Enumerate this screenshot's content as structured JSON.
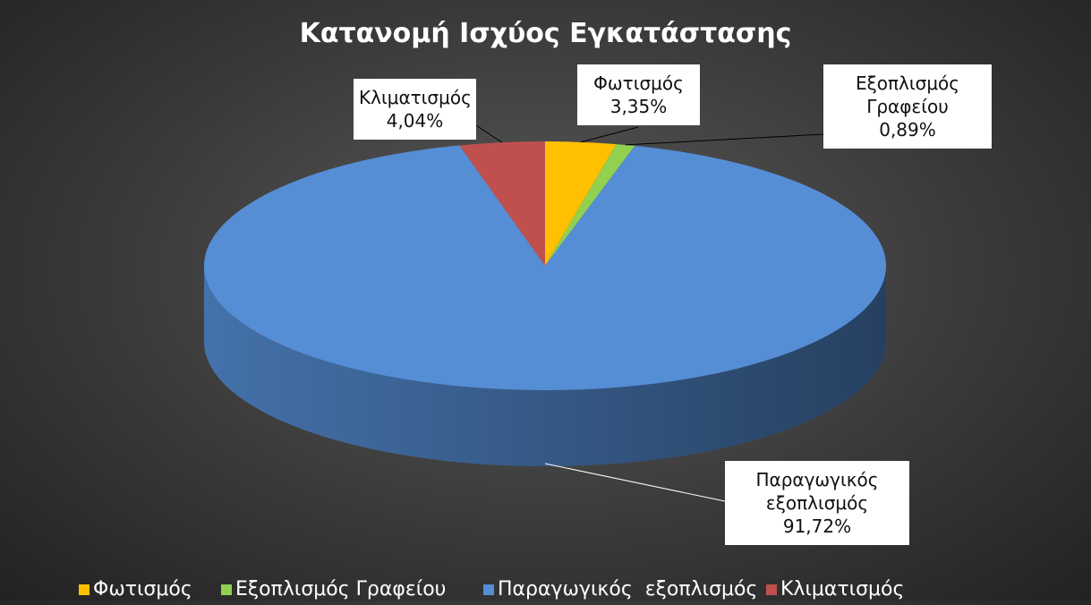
{
  "chart_data": {
    "type": "pie3d",
    "title": "Κατανομή Ισχύος Εγκατάστασης",
    "categories": [
      "Φωτισμός",
      "Εξοπλισμός Γραφείου",
      "Παραγωγικός  εξοπλισμός",
      "Κλιματισμός"
    ],
    "values": [
      3.35,
      0.89,
      91.72,
      4.04
    ],
    "value_labels": [
      "3,35%",
      "0,89%",
      "91,72%",
      "4,04%"
    ],
    "colors": [
      "#ffc000",
      "#92d050",
      "#558ed5",
      "#c0504d"
    ],
    "legend": "bottom"
  }
}
